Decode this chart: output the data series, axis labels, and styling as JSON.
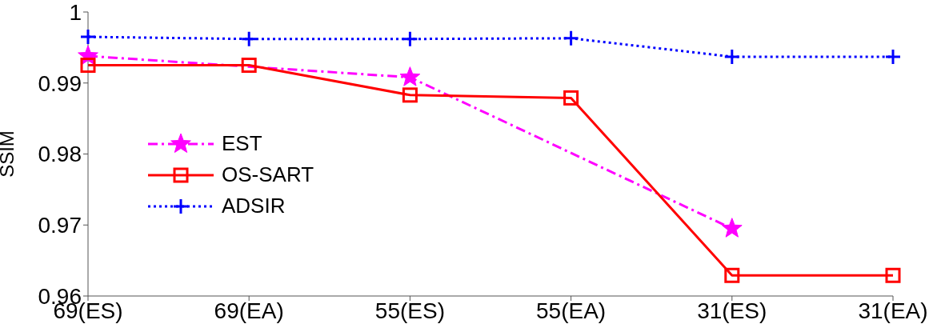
{
  "chart_data": {
    "type": "line",
    "ylabel": "SSIM",
    "categories": [
      "69(ES)",
      "69(EA)",
      "55(ES)",
      "55(EA)",
      "31(ES)",
      "31(EA)"
    ],
    "series": [
      {
        "name": "EST",
        "color": "#ff00ff",
        "marker": "star",
        "line_style": "dashdot",
        "values": [
          0.9938,
          null,
          0.9908,
          null,
          0.9695,
          null
        ]
      },
      {
        "name": "OS-SART",
        "color": "#ff0000",
        "marker": "square",
        "line_style": "solid",
        "values": [
          0.9925,
          0.9925,
          0.9883,
          0.9879,
          0.9629,
          0.9629
        ]
      },
      {
        "name": "ADSIR",
        "color": "#0000ff",
        "marker": "cross",
        "line_style": "dotted",
        "values": [
          0.9965,
          0.9962,
          0.9962,
          0.9963,
          0.9937,
          0.9937
        ]
      }
    ],
    "ylim": [
      0.96,
      1
    ],
    "yticks": [
      0.96,
      0.97,
      0.98,
      0.99,
      1
    ],
    "grid": false,
    "legend": "left"
  }
}
